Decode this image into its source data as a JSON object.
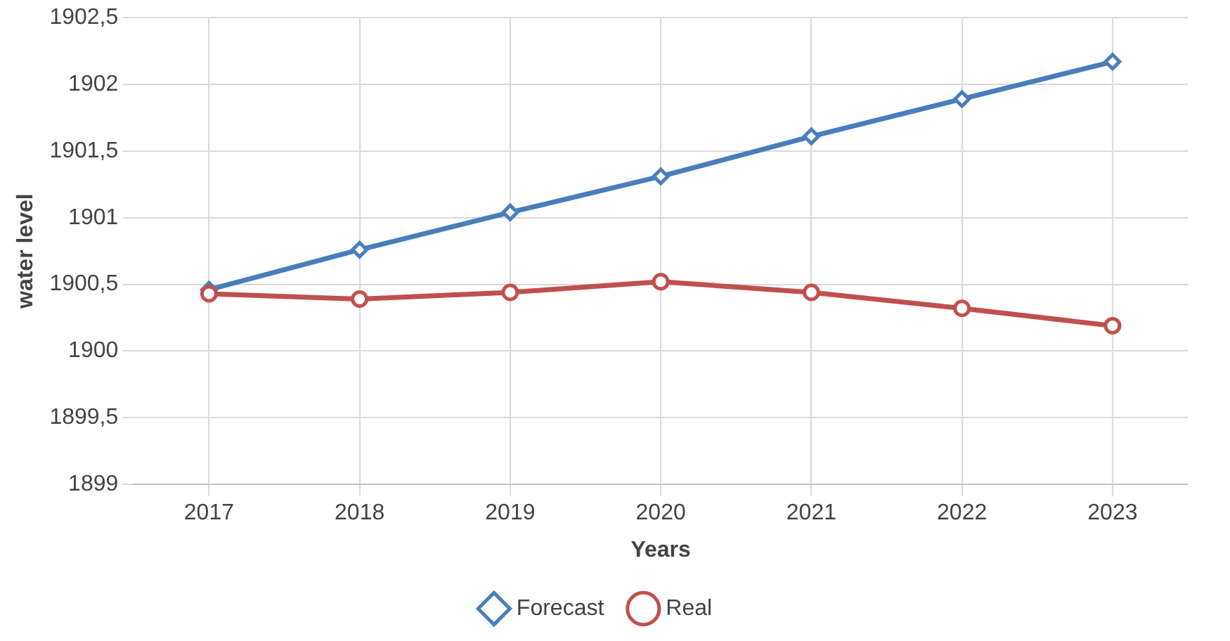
{
  "chart_data": {
    "type": "line",
    "xlabel": "Years",
    "ylabel": "water level",
    "categories": [
      "2017",
      "2018",
      "2019",
      "2020",
      "2021",
      "2022",
      "2023"
    ],
    "series": [
      {
        "name": "Forecast",
        "color": "#4a7ebb",
        "marker": "diamond",
        "values": [
          1900.46,
          1900.76,
          1901.04,
          1901.31,
          1901.61,
          1901.89,
          1902.17
        ]
      },
      {
        "name": "Real",
        "color": "#c0504d",
        "marker": "circle",
        "values": [
          1900.43,
          1900.39,
          1900.44,
          1900.52,
          1900.44,
          1900.32,
          1900.19
        ]
      }
    ],
    "ylim": [
      1899,
      1902.5
    ],
    "yticks": [
      1899,
      {
        "value": 1899.5,
        "label": "1899,5"
      },
      1900,
      {
        "value": 1900.5,
        "label": "1900,5"
      },
      1901,
      {
        "value": 1901.5,
        "label": "1901,5"
      },
      1902,
      {
        "value": 1902.5,
        "label": "1902,5"
      }
    ],
    "grid": true,
    "legend": "bottom",
    "line_style": "solid"
  }
}
